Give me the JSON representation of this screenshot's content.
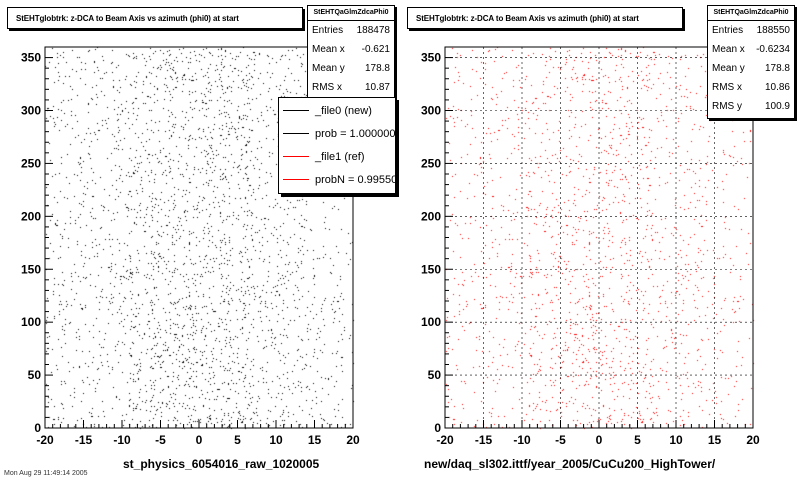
{
  "chart_data": [
    {
      "type": "scatter",
      "title": "StEHTglobtrk: z-DCA to Beam Axis vs azimuth (phi0) at start",
      "series": [
        {
          "name": "_file0 (new)",
          "color": "#000000"
        }
      ],
      "xlim": [
        -20,
        20
      ],
      "ylim": [
        0,
        360
      ],
      "xticks": [
        -20,
        -15,
        -10,
        -5,
        0,
        5,
        10,
        15,
        20
      ],
      "yticks": [
        0,
        50,
        100,
        150,
        200,
        250,
        300,
        350
      ],
      "grid": false,
      "xlabel": "st_physics_6054016_raw_1020005",
      "stats": {
        "name": "StEHTQaGlmZdcaPhi0",
        "entries": "188478",
        "mean_x": "-0.621",
        "mean_y": "178.8",
        "rms_x": "10.87"
      },
      "legend": {
        "placement": "top-right",
        "entries": [
          {
            "label": "_file0 (new)",
            "color": "#000000"
          },
          {
            "label": "prob = 1.000000",
            "color": "#000000"
          },
          {
            "label": "_file1 (ref)",
            "color": "#ff0000"
          },
          {
            "label": "probN = 0.995505",
            "color": "#ff0000"
          }
        ]
      }
    },
    {
      "type": "scatter",
      "title": "StEHTglobtrk: z-DCA to Beam Axis vs azimuth (phi0) at start",
      "series": [
        {
          "name": "_file1 (ref)",
          "color": "#ff0000"
        }
      ],
      "xlim": [
        -20,
        20
      ],
      "ylim": [
        0,
        360
      ],
      "xticks": [
        -20,
        -15,
        -10,
        -5,
        0,
        5,
        10,
        15,
        20
      ],
      "yticks": [
        0,
        50,
        100,
        150,
        200,
        250,
        300,
        350
      ],
      "grid": true,
      "xlabel": "new/daq_sl302.ittf/year_2005/CuCu200_HighTower/",
      "stats": {
        "name": "StEHTQaGlmZdcaPhi0",
        "entries": "188550",
        "mean_x": "-0.6234",
        "mean_y": "178.8",
        "rms_x": "10.86",
        "rms_y": "100.9"
      }
    }
  ],
  "labels": {
    "entries": "Entries",
    "mean_x": "Mean x",
    "mean_y": "Mean y",
    "rms_x": "RMS x",
    "rms_y": "RMS y"
  },
  "footer_note": "Mon Aug 29 11:49:14 2005"
}
